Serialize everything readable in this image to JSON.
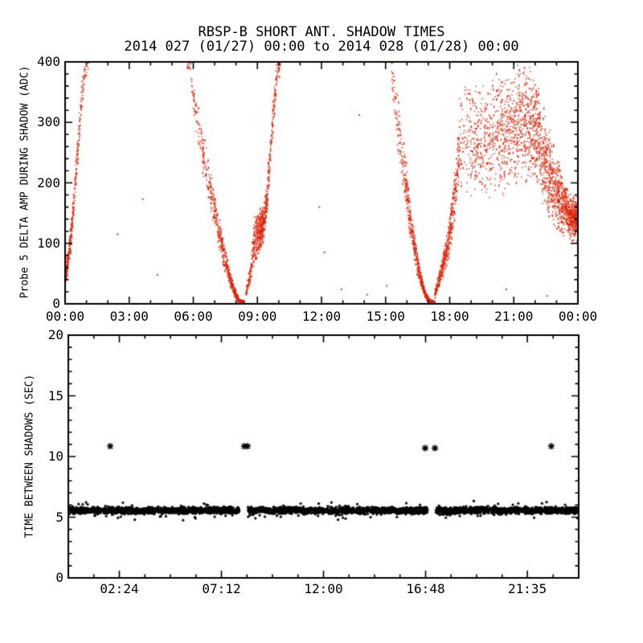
{
  "title": "RBSP-B SHORT ANT. SHADOW TIMES",
  "subtitle": "2014 027 (01/27) 00:00 to 2014 028 (01/28) 00:00",
  "colors": {
    "scatter_red": "#e02408",
    "axis_black": "#000000",
    "background": "#ffffff"
  },
  "chart_data": [
    {
      "type": "scatter",
      "name": "probe5-delta-amp-during-shadow",
      "title": "RBSP-B SHORT ANT. SHADOW TIMES",
      "subtitle": "2014 027 (01/27) 00:00 to 2014 028 (01/28) 00:00",
      "xlabel": "",
      "ylabel": "Probe 5 DELTA AMP DURING SHADOW (ADC)",
      "x_unit": "hours since 2014-01-27 00:00",
      "xlim_hours": [
        0,
        24
      ],
      "ylim": [
        0,
        400
      ],
      "grid": false,
      "legend": null,
      "marker": "dot",
      "marker_color": "#e02408",
      "xticks": [
        {
          "hour": 0,
          "label": "00:00"
        },
        {
          "hour": 3,
          "label": "03:00"
        },
        {
          "hour": 6,
          "label": "06:00"
        },
        {
          "hour": 9,
          "label": "09:00"
        },
        {
          "hour": 12,
          "label": "12:00"
        },
        {
          "hour": 15,
          "label": "15:00"
        },
        {
          "hour": 18,
          "label": "18:00"
        },
        {
          "hour": 21,
          "label": "21:00"
        },
        {
          "hour": 24,
          "label": "00:00"
        }
      ],
      "x_minor_step_hours": 1,
      "yticks": [
        {
          "value": 0,
          "label": "0"
        },
        {
          "value": 100,
          "label": "100"
        },
        {
          "value": 200,
          "label": "200"
        },
        {
          "value": 300,
          "label": "300"
        },
        {
          "value": 400,
          "label": "400"
        }
      ],
      "y_minor_step": 20,
      "branches_note": "control points [t_hours, center_ADC, spread_ADC, n_points_to_next]; envelopes read off the plot",
      "branches": [
        {
          "name": "midnight-shadow-exit-rise",
          "columnar": false,
          "cps": [
            [
              0.0,
              45,
              18,
              90
            ],
            [
              0.15,
              75,
              22,
              80
            ],
            [
              0.3,
              120,
              28,
              60
            ],
            [
              0.45,
              185,
              32,
              45
            ],
            [
              0.6,
              255,
              35,
              35
            ],
            [
              0.75,
              330,
              35,
              30
            ],
            [
              0.9,
              385,
              25,
              20
            ],
            [
              1.1,
              400,
              18,
              0
            ]
          ]
        },
        {
          "name": "descent-0545-to-min-0815",
          "columnar": false,
          "cps": [
            [
              5.7,
              400,
              12,
              10
            ],
            [
              5.85,
              385,
              20,
              15
            ],
            [
              6.0,
              345,
              30,
              25
            ],
            [
              6.2,
              300,
              40,
              35
            ],
            [
              6.45,
              250,
              45,
              45
            ],
            [
              6.7,
              205,
              40,
              55
            ],
            [
              6.95,
              165,
              35,
              65
            ],
            [
              7.2,
              120,
              30,
              75
            ],
            [
              7.45,
              80,
              24,
              85
            ],
            [
              7.7,
              45,
              16,
              90
            ],
            [
              7.95,
              18,
              9,
              90
            ],
            [
              8.15,
              5,
              4,
              70
            ],
            [
              8.4,
              3,
              3,
              0
            ]
          ]
        },
        {
          "name": "rise-0845-blob-to-1010",
          "columnar": false,
          "cps": [
            [
              8.45,
              15,
              8,
              50
            ],
            [
              8.65,
              45,
              20,
              60
            ],
            [
              8.85,
              100,
              45,
              80
            ],
            [
              9.0,
              115,
              40,
              110
            ],
            [
              9.15,
              125,
              40,
              110
            ],
            [
              9.3,
              135,
              35,
              80
            ],
            [
              9.45,
              175,
              40,
              55
            ],
            [
              9.6,
              245,
              45,
              45
            ],
            [
              9.75,
              315,
              40,
              35
            ],
            [
              9.9,
              375,
              25,
              25
            ],
            [
              10.1,
              400,
              15,
              0
            ]
          ]
        },
        {
          "name": "descent-1515-to-min-1705",
          "columnar": false,
          "cps": [
            [
              15.25,
              400,
              15,
              12
            ],
            [
              15.4,
              360,
              45,
              25
            ],
            [
              15.55,
              310,
              65,
              35
            ],
            [
              15.75,
              255,
              55,
              45
            ],
            [
              15.95,
              200,
              50,
              55
            ],
            [
              16.1,
              155,
              40,
              70
            ],
            [
              16.3,
              105,
              32,
              75
            ],
            [
              16.5,
              65,
              22,
              85
            ],
            [
              16.7,
              35,
              13,
              90
            ],
            [
              16.9,
              12,
              6,
              90
            ],
            [
              17.1,
              4,
              3,
              60
            ],
            [
              17.3,
              3,
              3,
              0
            ]
          ]
        },
        {
          "name": "rise-1730-to-1830",
          "columnar": false,
          "cps": [
            [
              17.3,
              15,
              8,
              60
            ],
            [
              17.5,
              40,
              14,
              80
            ],
            [
              17.7,
              65,
              22,
              95
            ],
            [
              17.9,
              95,
              30,
              95
            ],
            [
              18.1,
              140,
              42,
              75
            ],
            [
              18.3,
              195,
              55,
              55
            ],
            [
              18.45,
              250,
              70,
              0
            ]
          ]
        },
        {
          "name": "noisy-cloud-1830-to-2400",
          "columnar": true,
          "cps": [
            [
              18.45,
              270,
              95,
              45
            ],
            [
              18.75,
              275,
              100,
              55
            ],
            [
              19.05,
              270,
              100,
              65
            ],
            [
              19.35,
              275,
              100,
              75
            ],
            [
              19.7,
              270,
              105,
              85
            ],
            [
              20.1,
              275,
              108,
              100
            ],
            [
              20.5,
              280,
              112,
              115
            ],
            [
              20.9,
              292,
              108,
              130
            ],
            [
              21.3,
              298,
              103,
              140
            ],
            [
              21.7,
              302,
              98,
              140
            ],
            [
              22.05,
              285,
              98,
              130
            ],
            [
              22.35,
              250,
              92,
              125
            ],
            [
              22.65,
              215,
              82,
              130
            ],
            [
              22.95,
              185,
              70,
              140
            ],
            [
              23.25,
              165,
              55,
              155
            ],
            [
              23.55,
              148,
              42,
              170
            ],
            [
              23.8,
              140,
              38,
              170
            ],
            [
              24.0,
              140,
              38,
              0
            ]
          ]
        }
      ],
      "stray_points": [
        [
          2.45,
          115
        ],
        [
          3.64,
          173
        ],
        [
          4.32,
          48
        ],
        [
          11.9,
          160
        ],
        [
          12.14,
          85
        ],
        [
          13.77,
          312
        ],
        [
          12.94,
          24
        ],
        [
          14.14,
          15
        ],
        [
          15.05,
          30
        ],
        [
          20.65,
          24
        ],
        [
          22.56,
          13
        ]
      ]
    },
    {
      "type": "scatter",
      "name": "time-between-shadows",
      "xlabel": "",
      "ylabel": "TIME BETWEEN SHADOWS (SEC)",
      "x_unit": "hours since 2014-01-27 00:00",
      "xlim_hours": [
        0,
        24
      ],
      "ylim": [
        0,
        20
      ],
      "grid": false,
      "legend": null,
      "marker": "asterisk",
      "marker_color": "#000000",
      "xticks": [
        {
          "hour": 2.4,
          "label": "02:24"
        },
        {
          "hour": 7.2,
          "label": "07:12"
        },
        {
          "hour": 12.0,
          "label": "12:00"
        },
        {
          "hour": 16.8,
          "label": "16:48"
        },
        {
          "hour": 21.584,
          "label": "21:35"
        }
      ],
      "x_minor_step_hours": 1.2,
      "yticks": [
        {
          "value": 0,
          "label": "0"
        },
        {
          "value": 5,
          "label": "5"
        },
        {
          "value": 10,
          "label": "10"
        },
        {
          "value": 15,
          "label": "15"
        },
        {
          "value": 20,
          "label": "20"
        }
      ],
      "y_minor_step": 1,
      "band": {
        "start_hour": 0.05,
        "end_hour": 23.97,
        "center_sec": 5.55,
        "halfwidth_sec": 0.33,
        "gaps_hours": [
          [
            8.05,
            8.45
          ],
          [
            16.88,
            17.28
          ]
        ],
        "n_points": 3400,
        "fringe_fraction": 0.05,
        "fringe_extra_sec": 0.35
      },
      "outliers_high": [
        [
          1.97,
          10.85
        ],
        [
          8.27,
          10.85
        ],
        [
          8.43,
          10.85
        ],
        [
          16.78,
          10.7
        ],
        [
          17.24,
          10.7
        ],
        [
          22.71,
          10.85
        ]
      ]
    }
  ]
}
